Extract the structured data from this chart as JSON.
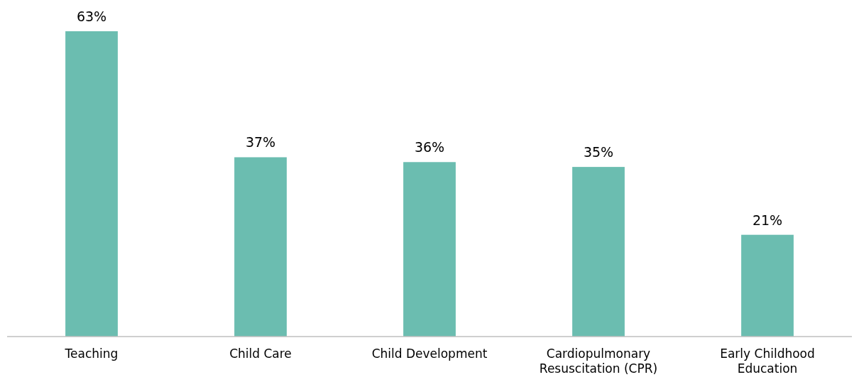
{
  "chart_data": {
    "type": "bar",
    "categories": [
      "Teaching",
      "Child Care",
      "Child Development",
      "Cardiopulmonary Resuscitation (CPR)",
      "Early Childhood Education"
    ],
    "values": [
      63,
      37,
      36,
      35,
      21
    ],
    "value_labels": [
      "63%",
      "37%",
      "36%",
      "35%",
      "21%"
    ],
    "color": "#6bbdb0"
  }
}
